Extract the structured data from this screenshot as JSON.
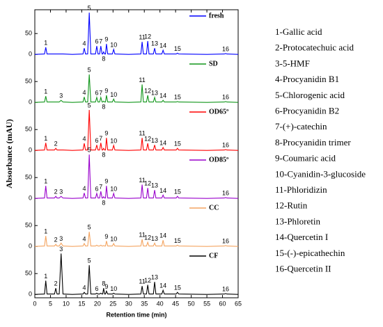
{
  "chart_data": {
    "type": "line",
    "y_label": "Absorbance (mAU)",
    "x_label": "Retention time (min)",
    "xlim": [
      0,
      65
    ],
    "xticks": [
      0,
      5,
      10,
      15,
      20,
      25,
      30,
      35,
      40,
      45,
      50,
      55,
      60,
      65
    ],
    "ylim": [
      -8,
      107
    ],
    "yticks": [
      0,
      50
    ],
    "x": [
      0,
      3.1,
      3.5,
      3.9,
      6.3,
      6.7,
      7.1,
      7.8,
      8.4,
      9.0,
      12,
      15.4,
      15.8,
      16.2,
      16.9,
      17.4,
      17.9,
      19.4,
      19.8,
      20.2,
      20.7,
      21.1,
      21.5,
      21.7,
      22.0,
      22.3,
      22.6,
      22.9,
      23.3,
      24.8,
      25.2,
      25.6,
      30,
      33.9,
      34.3,
      34.7,
      35.7,
      36.1,
      36.5,
      37.9,
      38.3,
      38.7,
      40.6,
      41.0,
      41.4,
      45.2,
      45.6,
      46.0,
      55,
      60.6,
      61.0,
      61.4,
      65
    ],
    "series": [
      {
        "name": "fresh",
        "color": "#0000ff",
        "values": [
          0,
          1,
          17,
          1,
          1,
          1,
          1,
          1,
          1,
          1,
          0,
          1,
          15,
          1,
          1,
          100,
          1,
          1,
          20,
          1,
          1,
          20,
          1,
          1,
          6,
          1,
          1,
          25,
          1,
          1,
          12,
          1,
          0,
          1,
          30,
          1,
          1,
          32,
          1,
          1,
          15,
          1,
          1,
          10,
          1,
          1,
          3,
          1,
          0,
          1,
          2,
          1,
          0
        ],
        "peaks": [
          {
            "label": "1",
            "x": 3.5
          },
          {
            "label": "4",
            "x": 15.8
          },
          {
            "label": "5",
            "x": 17.4
          },
          {
            "label": "6",
            "x": 19.8
          },
          {
            "label": "7",
            "x": 21.1
          },
          {
            "label": "8",
            "x": 22.0,
            "below": true
          },
          {
            "label": "9",
            "x": 22.9
          },
          {
            "label": "10",
            "x": 25.2
          },
          {
            "label": "11",
            "x": 34.3
          },
          {
            "label": "12",
            "x": 36.1
          },
          {
            "label": "13",
            "x": 38.3
          },
          {
            "label": "14",
            "x": 41.0
          },
          {
            "label": "15",
            "x": 45.6
          },
          {
            "label": "16",
            "x": 61.0
          }
        ]
      },
      {
        "name": "SD",
        "color": "#11961a",
        "values": [
          0,
          1,
          15,
          1,
          1,
          1,
          1,
          1,
          5,
          1,
          0,
          1,
          13,
          1,
          1,
          67,
          1,
          1,
          12,
          1,
          1,
          12,
          1,
          1,
          3,
          1,
          1,
          17,
          1,
          1,
          8,
          1,
          0,
          1,
          43,
          1,
          1,
          17,
          1,
          1,
          12,
          1,
          1,
          5,
          1,
          1,
          2,
          1,
          0,
          1,
          2,
          1,
          0
        ],
        "peaks": [
          {
            "label": "1",
            "x": 3.5
          },
          {
            "label": "3",
            "x": 8.4
          },
          {
            "label": "4",
            "x": 15.8
          },
          {
            "label": "5",
            "x": 17.4
          },
          {
            "label": "6",
            "x": 19.8
          },
          {
            "label": "7",
            "x": 21.1
          },
          {
            "label": "8",
            "x": 22.0,
            "below": true
          },
          {
            "label": "9",
            "x": 22.9
          },
          {
            "label": "10",
            "x": 25.2
          },
          {
            "label": "11",
            "x": 34.3
          },
          {
            "label": "12",
            "x": 36.1
          },
          {
            "label": "13",
            "x": 38.3
          },
          {
            "label": "14",
            "x": 41.0
          },
          {
            "label": "15",
            "x": 45.6
          },
          {
            "label": "16",
            "x": 61.0
          }
        ]
      },
      {
        "name": "OD65º",
        "color": "#ff0000",
        "values": [
          0,
          1,
          18,
          1,
          1,
          5,
          1,
          1,
          1,
          1,
          0,
          1,
          17,
          1,
          1,
          97,
          1,
          1,
          13,
          1,
          1,
          18,
          1,
          1,
          5,
          1,
          1,
          30,
          1,
          1,
          12,
          1,
          0,
          1,
          30,
          1,
          1,
          17,
          1,
          1,
          13,
          1,
          1,
          7,
          1,
          1,
          5,
          1,
          0,
          1,
          2,
          1,
          0
        ],
        "peaks": [
          {
            "label": "1",
            "x": 3.5
          },
          {
            "label": "2",
            "x": 6.7
          },
          {
            "label": "4",
            "x": 15.8
          },
          {
            "label": "5",
            "x": 17.4
          },
          {
            "label": "6",
            "x": 19.8
          },
          {
            "label": "7",
            "x": 21.1
          },
          {
            "label": "8",
            "x": 22.0,
            "below": true
          },
          {
            "label": "9",
            "x": 22.9
          },
          {
            "label": "10",
            "x": 25.2
          },
          {
            "label": "11",
            "x": 34.3
          },
          {
            "label": "12",
            "x": 36.1
          },
          {
            "label": "13",
            "x": 38.3
          },
          {
            "label": "14",
            "x": 41.0
          },
          {
            "label": "15",
            "x": 45.6
          },
          {
            "label": "16",
            "x": 61.0
          }
        ]
      },
      {
        "name": "OD85º",
        "color": "#9900cc",
        "values": [
          0,
          1,
          30,
          1,
          1,
          5,
          1,
          1,
          5,
          1,
          0,
          1,
          13,
          1,
          1,
          105,
          1,
          1,
          12,
          1,
          1,
          17,
          1,
          1,
          4,
          1,
          1,
          30,
          1,
          1,
          12,
          1,
          0,
          1,
          33,
          1,
          1,
          25,
          1,
          1,
          20,
          1,
          1,
          8,
          1,
          1,
          5,
          1,
          0,
          1,
          2,
          1,
          0
        ],
        "peaks": [
          {
            "label": "1",
            "x": 3.5
          },
          {
            "label": "2",
            "x": 6.7
          },
          {
            "label": "3",
            "x": 8.4
          },
          {
            "label": "4",
            "x": 15.8
          },
          {
            "label": "5",
            "x": 17.4
          },
          {
            "label": "6",
            "x": 19.8
          },
          {
            "label": "7",
            "x": 21.1
          },
          {
            "label": "8",
            "x": 22.0,
            "below": true
          },
          {
            "label": "9",
            "x": 22.9
          },
          {
            "label": "10",
            "x": 25.2
          },
          {
            "label": "11",
            "x": 34.3
          },
          {
            "label": "12",
            "x": 36.1
          },
          {
            "label": "13",
            "x": 38.3
          },
          {
            "label": "14",
            "x": 41.0
          },
          {
            "label": "15",
            "x": 45.6
          },
          {
            "label": "16",
            "x": 61.0
          }
        ]
      },
      {
        "name": "CC",
        "color": "#f4a460",
        "values": [
          0,
          1,
          25,
          1,
          1,
          5,
          1,
          1,
          8,
          1,
          0,
          1,
          7,
          1,
          1,
          35,
          1,
          1,
          3,
          1,
          1,
          3,
          1,
          1,
          2,
          1,
          1,
          13,
          1,
          1,
          7,
          1,
          0,
          1,
          17,
          1,
          1,
          10,
          1,
          1,
          8,
          1,
          1,
          15,
          1,
          1,
          3,
          1,
          0,
          1,
          2,
          1,
          0
        ],
        "peaks": [
          {
            "label": "1",
            "x": 3.5
          },
          {
            "label": "2",
            "x": 6.7
          },
          {
            "label": "3",
            "x": 8.4
          },
          {
            "label": "4",
            "x": 15.8
          },
          {
            "label": "5",
            "x": 17.4
          },
          {
            "label": "9",
            "x": 22.9
          },
          {
            "label": "10",
            "x": 25.2
          },
          {
            "label": "11",
            "x": 34.3
          },
          {
            "label": "12",
            "x": 36.1
          },
          {
            "label": "13",
            "x": 38.3
          },
          {
            "label": "14",
            "x": 41.0
          },
          {
            "label": "15",
            "x": 45.6
          },
          {
            "label": "16",
            "x": 61.0
          }
        ]
      },
      {
        "name": "CF",
        "color": "#000000",
        "values": [
          0,
          1,
          33,
          1,
          1,
          15,
          1,
          1,
          98,
          1,
          0,
          1,
          5,
          1,
          1,
          70,
          1,
          1,
          3,
          1,
          1,
          3,
          1,
          1,
          15,
          1,
          1,
          8,
          1,
          1,
          3,
          1,
          0,
          1,
          20,
          1,
          1,
          23,
          1,
          1,
          30,
          1,
          1,
          10,
          1,
          1,
          5,
          1,
          0,
          1,
          2,
          1,
          0
        ],
        "peaks": [
          {
            "label": "1",
            "x": 3.5
          },
          {
            "label": "2",
            "x": 6.7
          },
          {
            "label": "3",
            "x": 8.4
          },
          {
            "label": "4",
            "x": 15.8
          },
          {
            "label": "5",
            "x": 17.4
          },
          {
            "label": "6",
            "x": 19.8
          },
          {
            "label": "8",
            "x": 22.0
          },
          {
            "label": "9",
            "x": 22.9
          },
          {
            "label": "10",
            "x": 25.2
          },
          {
            "label": "11",
            "x": 34.3
          },
          {
            "label": "12",
            "x": 36.1
          },
          {
            "label": "13",
            "x": 38.3
          },
          {
            "label": "14",
            "x": 41.0
          },
          {
            "label": "15",
            "x": 45.6
          },
          {
            "label": "16",
            "x": 61.0
          }
        ]
      }
    ],
    "compounds": [
      "1-Gallic acid",
      "2-Protocatechuic acid",
      "3-5-HMF",
      "4-Procyanidin B1",
      "5-Chlorogenic acid",
      "6-Procyanidin B2",
      "7-(+)-catechin",
      "8-Procyanidin trimer",
      "9-Coumaric acid",
      "10-Cyanidin-3-glucoside",
      "11-Phloridizin",
      "12-Rutin",
      "13-Phloretin",
      "14-Quercetin I",
      "15-(-)-epicathechin",
      "16-Quercetin II"
    ]
  }
}
